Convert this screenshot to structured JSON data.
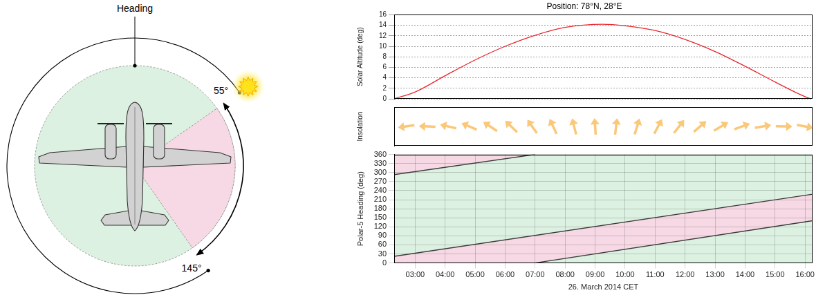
{
  "diagram": {
    "heading_label": "Heading",
    "disk": {
      "color": "#dcf1e1"
    },
    "sector": {
      "start": {
        "value": 55,
        "label": "55°"
      },
      "end": {
        "value": 145,
        "label": "145°"
      },
      "color": "#f6d9e4"
    }
  },
  "chart_data": [
    {
      "type": "line",
      "title": "Position: 78°N, 28°E",
      "ylabel": "Solar Altitude (deg)",
      "x": [
        2.3,
        3,
        4,
        5,
        6,
        7,
        8,
        9.25,
        10,
        11,
        12,
        13,
        14,
        15,
        16,
        16.2
      ],
      "values": [
        0,
        1.3,
        4.4,
        7.4,
        10.0,
        12.1,
        13.6,
        14.2,
        13.9,
        13.0,
        11.3,
        9.0,
        6.2,
        3.2,
        0.4,
        0
      ],
      "color": "#e8262b",
      "xlim": [
        2.3,
        16.25
      ],
      "ylim": [
        0,
        16
      ],
      "yticks": [
        0,
        2,
        4,
        6,
        8,
        10,
        12,
        14,
        16
      ],
      "grid": "y",
      "tick_labels": "y"
    },
    {
      "type": "arrows",
      "ylabel": "Insolation",
      "x": [
        2.7,
        3.4,
        4.1,
        4.8,
        5.5,
        6.2,
        6.9,
        7.6,
        8.3,
        9.0,
        9.7,
        10.4,
        11.1,
        11.8,
        12.5,
        13.2,
        13.9,
        14.6,
        15.3,
        16.0
      ],
      "values": [
        -98,
        -88,
        -77,
        -67,
        -56,
        -46,
        -35,
        -25,
        -14,
        -4,
        7,
        17,
        28,
        38,
        49,
        59,
        70,
        80,
        91,
        101
      ],
      "color": "#fbc779",
      "xlim": [
        2.3,
        16.25
      ],
      "tick_labels": false
    },
    {
      "type": "line",
      "ylabel": "Polar-5 Heading (deg)",
      "xlabel": "26. March 2014 CET",
      "series": [
        {
          "x": [
            2.3,
            16.25
          ],
          "values": [
            22,
            228
          ],
          "color": "#3a3a3a"
        },
        {
          "x": [
            2.3,
            7.0
          ],
          "values": [
            293,
            360
          ],
          "color": "#3a3a3a"
        },
        {
          "x": [
            7.0,
            16.25
          ],
          "values": [
            0,
            140
          ],
          "color": "#3a3a3a"
        }
      ],
      "regions": [
        {
          "x": [
            2.3,
            16.25
          ],
          "upper": [
            360,
            360
          ],
          "lower": [
            0,
            0
          ],
          "color": "#dcf1e1"
        },
        {
          "x": [
            2.3,
            7.0,
            16.25
          ],
          "upper": [
            22,
            91,
            228
          ],
          "lower": [
            0,
            0,
            140
          ],
          "color": "#f6d9e4"
        },
        {
          "x": [
            2.3,
            7.0
          ],
          "upper": [
            360,
            360
          ],
          "lower": [
            293,
            360
          ],
          "color": "#f6d9e4"
        }
      ],
      "xlim": [
        2.3,
        16.25
      ],
      "ylim": [
        0,
        360
      ],
      "xticks": [
        {
          "value": 3,
          "label": "03:00"
        },
        {
          "value": 4,
          "label": "04:00"
        },
        {
          "value": 5,
          "label": "05:00"
        },
        {
          "value": 6,
          "label": "06:00"
        },
        {
          "value": 7,
          "label": "07:00"
        },
        {
          "value": 8,
          "label": "08:00"
        },
        {
          "value": 9,
          "label": "09:00"
        },
        {
          "value": 10,
          "label": "10:00"
        },
        {
          "value": 11,
          "label": "11:00"
        },
        {
          "value": 12,
          "label": "12:00"
        },
        {
          "value": 13,
          "label": "13:00"
        },
        {
          "value": 14,
          "label": "14:00"
        },
        {
          "value": 15,
          "label": "15:00"
        },
        {
          "value": 16,
          "label": "16:00"
        }
      ],
      "yticks": [
        0,
        30,
        60,
        90,
        120,
        150,
        180,
        210,
        240,
        270,
        300,
        330,
        360
      ],
      "grid": true
    }
  ]
}
